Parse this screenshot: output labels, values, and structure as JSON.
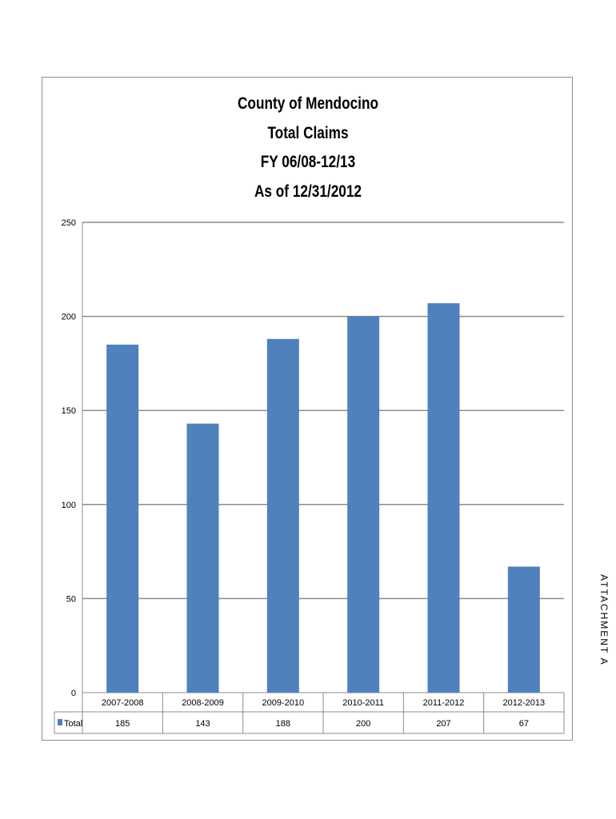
{
  "side_label": "ATTACHMENT A",
  "chart_data": {
    "type": "bar",
    "title_lines": [
      "County of Mendocino",
      "Total Claims",
      "FY 06/08-12/13",
      "As of 12/31/2012"
    ],
    "categories": [
      "2007-2008",
      "2008-2009",
      "2009-2010",
      "2010-2011",
      "2011-2012",
      "2012-2013"
    ],
    "series": [
      {
        "name": "Total",
        "values": [
          185,
          143,
          188,
          200,
          207,
          67
        ],
        "color": "#4f81bd"
      }
    ],
    "ylim": [
      0,
      250
    ],
    "yticks": [
      0,
      50,
      100,
      150,
      200,
      250
    ],
    "grid": true,
    "data_table": true,
    "legend": "data-table-row"
  }
}
